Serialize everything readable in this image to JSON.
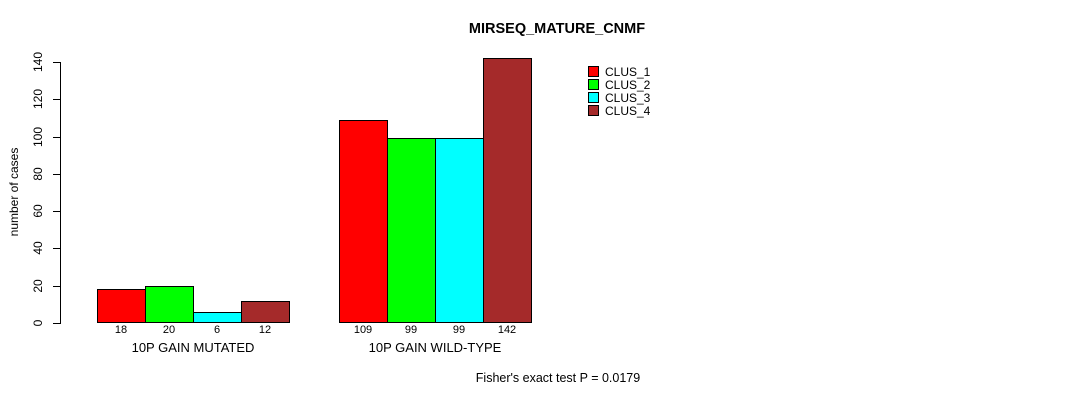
{
  "chart_data": {
    "type": "bar",
    "title": "MIRSEQ_MATURE_CNMF",
    "ylabel": "number of cases",
    "xlabel": "",
    "ylim": [
      0,
      140
    ],
    "yticks": [
      0,
      20,
      40,
      60,
      80,
      100,
      120,
      140
    ],
    "grid": false,
    "legend_position": "top-right",
    "categories": [
      "10P GAIN MUTATED",
      "10P GAIN WILD-TYPE"
    ],
    "series": [
      {
        "name": "CLUS_1",
        "color": "#ff0000",
        "values": [
          18,
          109
        ]
      },
      {
        "name": "CLUS_2",
        "color": "#00ff00",
        "values": [
          20,
          99
        ]
      },
      {
        "name": "CLUS_3",
        "color": "#00ffff",
        "values": [
          6,
          99
        ]
      },
      {
        "name": "CLUS_4",
        "color": "#a52a2a",
        "values": [
          12,
          142
        ]
      }
    ],
    "bar_value_labels": [
      [
        "18",
        "20",
        "6",
        "12"
      ],
      [
        "109",
        "99",
        "99",
        "142"
      ]
    ],
    "annotation": "Fisher's exact test P = 0.0179",
    "bar_border_color": "#000000",
    "background": "#ffffff",
    "text_color": "#000000"
  }
}
